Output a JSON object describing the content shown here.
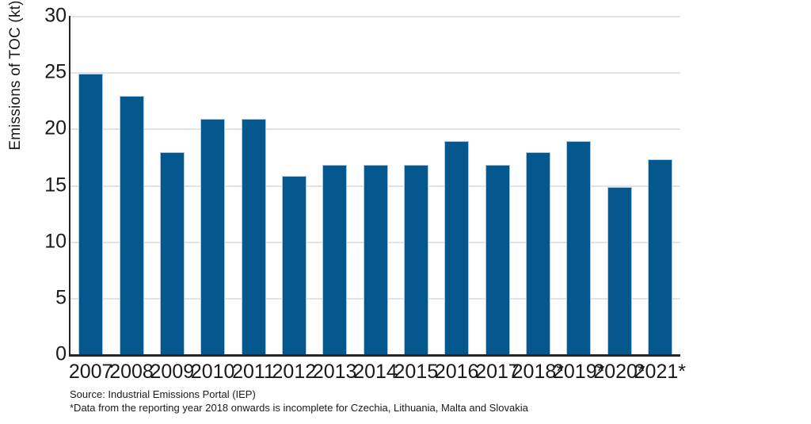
{
  "chart_data": {
    "type": "bar",
    "title": "",
    "xlabel": "",
    "ylabel": "Emissions of TOC (kt)",
    "categories": [
      "2007",
      "2008",
      "2009",
      "2010",
      "2011",
      "2012",
      "2013",
      "2014",
      "2015",
      "2016",
      "2017",
      "2018*",
      "2019*",
      "2020*",
      "2021*"
    ],
    "values": [
      24.9,
      22.9,
      17.9,
      20.9,
      20.9,
      15.8,
      16.8,
      16.8,
      16.8,
      18.9,
      16.8,
      17.9,
      18.9,
      14.8,
      17.3
    ],
    "ylim": [
      0,
      30
    ],
    "yticks": [
      0,
      5,
      10,
      15,
      20,
      25,
      30
    ],
    "grid": "horizontal",
    "legend": "none"
  },
  "footer": {
    "source": "Source: Industrial Emissions Portal (IEP)",
    "note": "*Data from the reporting year 2018 onwards is incomplete for Czechia, Lithuania, Malta and Slovakia"
  },
  "colors": {
    "bar": "#04588e",
    "bar_border": "#a9c8e2",
    "grid": "#e4e4e4",
    "axis": "#262626",
    "text": "#1a1a1a"
  }
}
